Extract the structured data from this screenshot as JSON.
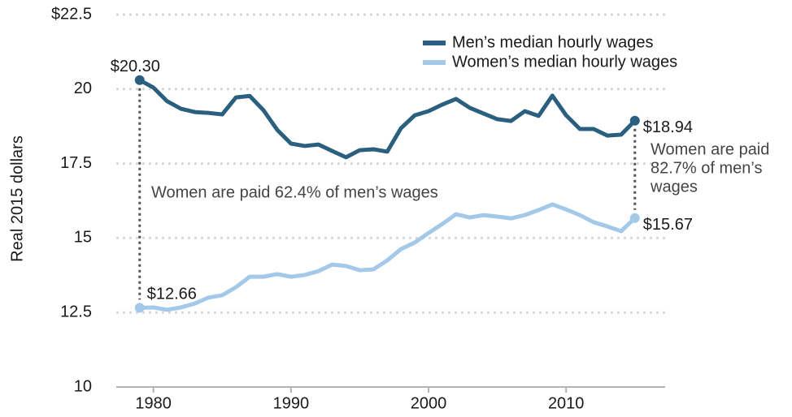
{
  "chart_data": {
    "type": "line",
    "y_label": "Real 2015 dollars",
    "x": [
      1979,
      1980,
      1981,
      1982,
      1983,
      1984,
      1985,
      1986,
      1987,
      1988,
      1989,
      1990,
      1991,
      1992,
      1993,
      1994,
      1995,
      1996,
      1997,
      1998,
      1999,
      2000,
      2001,
      2002,
      2003,
      2004,
      2005,
      2006,
      2007,
      2008,
      2009,
      2010,
      2011,
      2012,
      2013,
      2014,
      2015
    ],
    "series": [
      {
        "name": "Men’s median hourly wages",
        "color": "#2a5f80",
        "values": [
          20.3,
          20.05,
          19.59,
          19.34,
          19.23,
          19.2,
          19.15,
          19.72,
          19.77,
          19.29,
          18.63,
          18.17,
          18.09,
          18.14,
          17.92,
          17.71,
          17.95,
          17.98,
          17.9,
          18.69,
          19.12,
          19.26,
          19.48,
          19.67,
          19.37,
          19.18,
          18.99,
          18.93,
          19.26,
          19.1,
          19.78,
          19.12,
          18.66,
          18.66,
          18.44,
          18.47,
          18.94
        ],
        "value_labels": [
          "$20.30",
          null,
          null,
          null,
          null,
          null,
          null,
          null,
          null,
          null,
          null,
          null,
          null,
          null,
          null,
          null,
          null,
          null,
          null,
          null,
          null,
          null,
          null,
          null,
          null,
          null,
          null,
          null,
          null,
          null,
          null,
          null,
          null,
          null,
          null,
          null,
          "$18.94"
        ]
      },
      {
        "name": "Women’s median hourly wages",
        "color": "#a3c8e8",
        "values": [
          12.66,
          12.67,
          12.59,
          12.67,
          12.8,
          13.0,
          13.08,
          13.35,
          13.7,
          13.7,
          13.79,
          13.7,
          13.76,
          13.89,
          14.11,
          14.06,
          13.92,
          13.95,
          14.25,
          14.63,
          14.85,
          15.17,
          15.47,
          15.8,
          15.69,
          15.77,
          15.72,
          15.66,
          15.77,
          15.94,
          16.13,
          15.96,
          15.77,
          15.53,
          15.39,
          15.23,
          15.67
        ],
        "value_labels": [
          "$12.66",
          null,
          null,
          null,
          null,
          null,
          null,
          null,
          null,
          null,
          null,
          null,
          null,
          null,
          null,
          null,
          null,
          null,
          null,
          null,
          null,
          null,
          null,
          null,
          null,
          null,
          null,
          null,
          null,
          null,
          null,
          null,
          null,
          null,
          null,
          null,
          "$15.67"
        ]
      }
    ],
    "annotations": [
      {
        "lines": [
          "Women are paid 62.4% of men’s wages"
        ]
      },
      {
        "lines": [
          "Women are paid",
          "82.7% of men’s",
          "wages"
        ]
      }
    ],
    "xlim": [
      1977.3,
      2017.2
    ],
    "xticks": [
      1980,
      1990,
      2000,
      2010
    ],
    "ylim": [
      10,
      22.5
    ],
    "yticks": [
      {
        "value": 22.5,
        "label": "$22.5"
      },
      20,
      17.5,
      15,
      12.5,
      10
    ],
    "grid": true,
    "legend": "top-right"
  }
}
